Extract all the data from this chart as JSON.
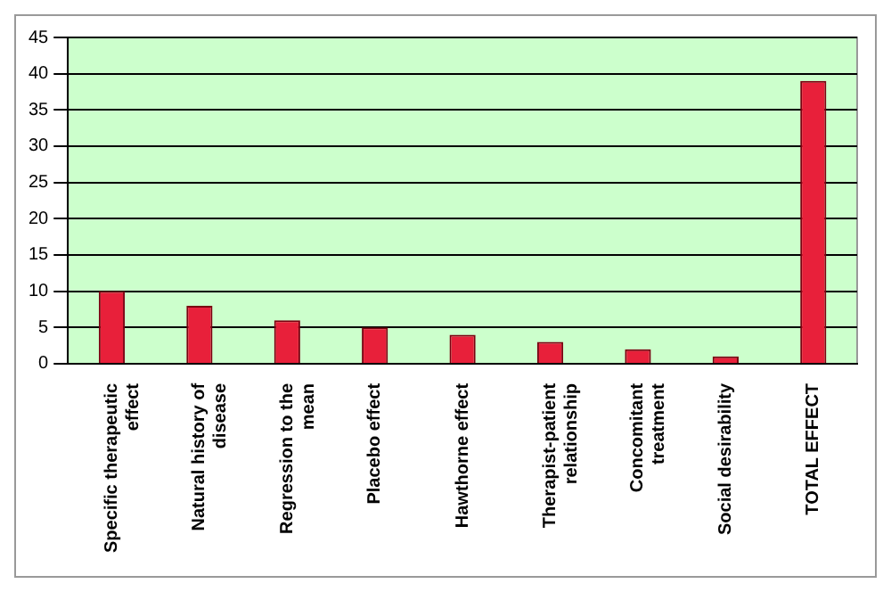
{
  "chart_data": {
    "type": "bar",
    "categories": [
      "Specific therapeutic effect",
      "Natural history of disease",
      "Regression to the mean",
      "Placebo effect",
      "Hawthorne effect",
      "Therapist-patient relationship",
      "Concomitant treatment",
      "Social desirability",
      "TOTAL EFFECT"
    ],
    "values": [
      10,
      8,
      6,
      5,
      4,
      3,
      2,
      1,
      39
    ],
    "color": "#e8203a",
    "ylim": [
      0,
      45
    ],
    "yticks": [
      0,
      5,
      10,
      15,
      20,
      25,
      30,
      35,
      40,
      45
    ],
    "grid": "y",
    "legend": false
  }
}
